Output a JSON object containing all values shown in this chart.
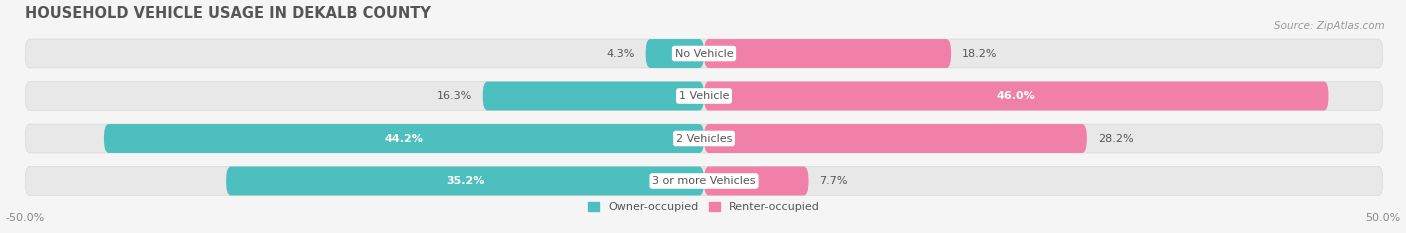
{
  "title": "HOUSEHOLD VEHICLE USAGE IN DEKALB COUNTY",
  "source": "Source: ZipAtlas.com",
  "categories": [
    "No Vehicle",
    "1 Vehicle",
    "2 Vehicles",
    "3 or more Vehicles"
  ],
  "owner_values": [
    4.3,
    16.3,
    44.2,
    35.2
  ],
  "renter_values": [
    18.2,
    46.0,
    28.2,
    7.7
  ],
  "owner_color": "#4dbfbf",
  "renter_color": "#f080a8",
  "renter_color_light": "#f8afc8",
  "owner_color_light": "#90d8d8",
  "bar_bg_color": "#e8e8e8",
  "bar_bg_border": "#d8d8d8",
  "background_color": "#f5f5f5",
  "xlim": [
    -50,
    50
  ],
  "legend_owner": "Owner-occupied",
  "legend_renter": "Renter-occupied",
  "title_fontsize": 10.5,
  "source_fontsize": 7.5,
  "label_fontsize": 8,
  "bar_height": 0.68,
  "label_color_dark": "#555555",
  "label_color_light": "#ffffff"
}
